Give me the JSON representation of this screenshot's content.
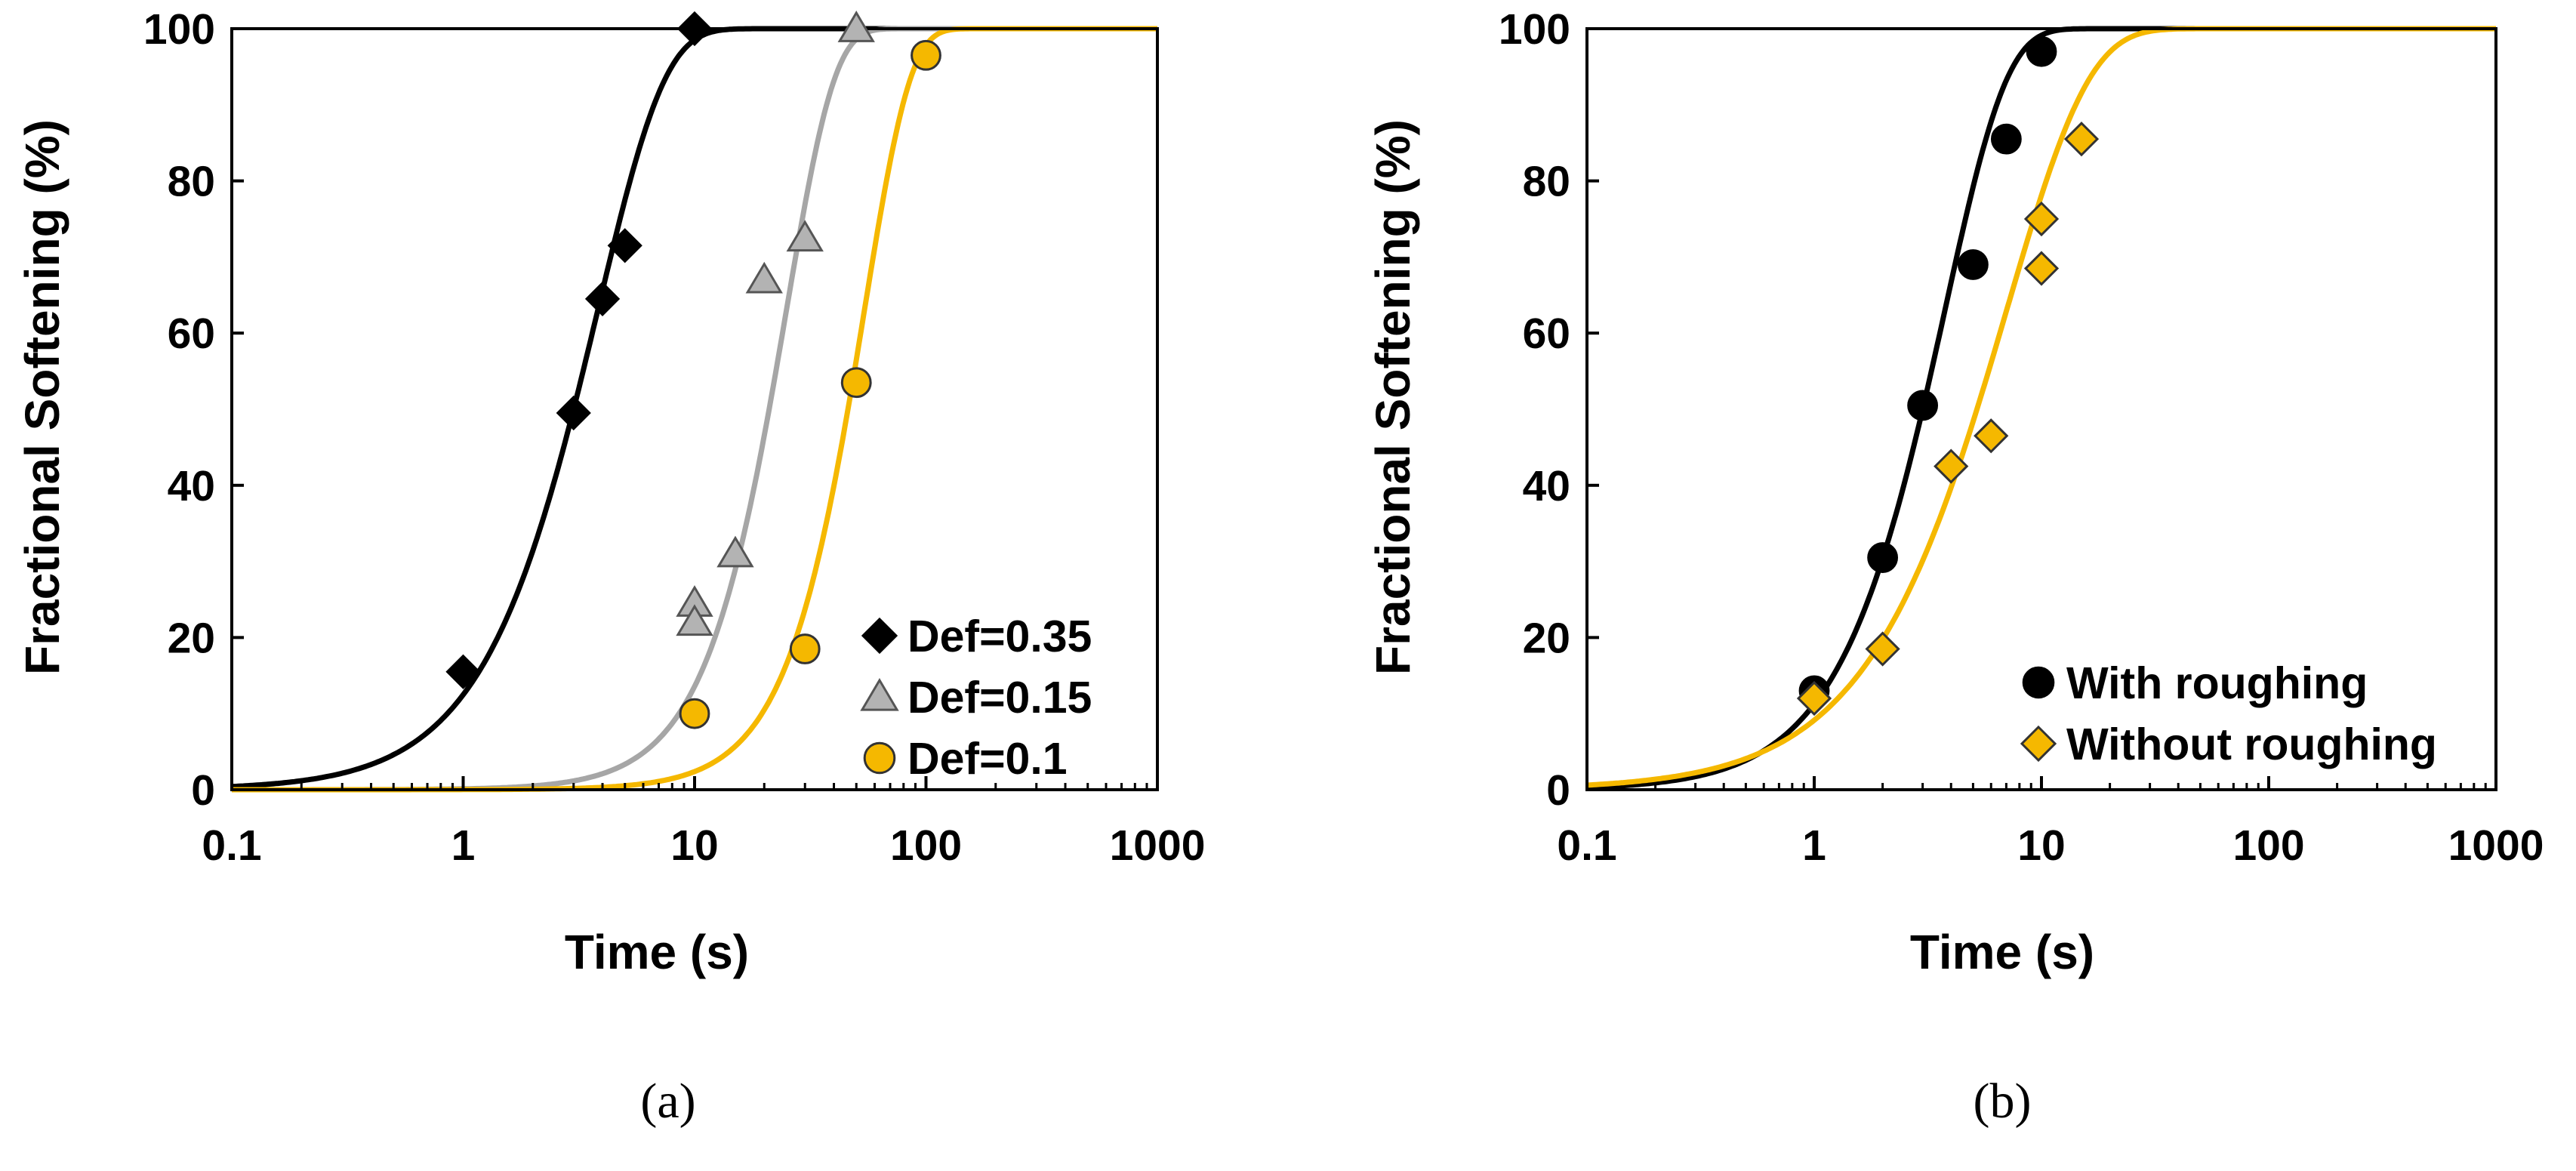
{
  "chart_data": [
    {
      "type": "scatter",
      "panel_label": "(a)",
      "title": "",
      "xlabel": "Time (s)",
      "ylabel": "Fractional Softening (%)",
      "xscale": "log",
      "xlim": [
        0.1,
        1000
      ],
      "ylim": [
        0,
        100
      ],
      "xticks": [
        0.1,
        1,
        10,
        100,
        1000
      ],
      "xtick_labels": [
        "0.1",
        "1",
        "10",
        "100",
        "1000"
      ],
      "yticks": [
        0,
        20,
        40,
        60,
        80,
        100
      ],
      "ytick_labels": [
        "0",
        "20",
        "40",
        "60",
        "80",
        "100"
      ],
      "legend_position": "bottom-right",
      "series": [
        {
          "name": "Def=0.35",
          "marker": "diamond",
          "color": "#000000",
          "stroke": "#000000",
          "line_color": "#000000",
          "fit_t50": 3.0,
          "fit_n": 1.5,
          "x": [
            1,
            3,
            4,
            5,
            10
          ],
          "y": [
            15.5,
            49.5,
            64.5,
            71.5,
            100
          ]
        },
        {
          "name": "Def=0.15",
          "marker": "triangle",
          "color": "#b3b3b3",
          "stroke": "#555555",
          "line_color": "#a6a6a6",
          "fit_t50": 21,
          "fit_n": 2.1,
          "x": [
            10,
            10,
            15,
            20,
            30,
            50
          ],
          "y": [
            24.5,
            22,
            31,
            67,
            72.5,
            100
          ]
        },
        {
          "name": "Def=0.1",
          "marker": "circle",
          "color": "#f5b800",
          "stroke": "#333333",
          "line_color": "#f5b800",
          "fit_t50": 46,
          "fit_n": 2.2,
          "x": [
            10,
            30,
            50,
            100
          ],
          "y": [
            10,
            18.5,
            53.5,
            96.5
          ]
        }
      ]
    },
    {
      "type": "scatter",
      "panel_label": "(b)",
      "title": "",
      "xlabel": "Time (s)",
      "ylabel": "Fractional Softening (%)",
      "xscale": "log",
      "xlim": [
        0.1,
        1000
      ],
      "ylim": [
        0,
        100
      ],
      "xticks": [
        0.1,
        1,
        10,
        100,
        1000
      ],
      "xtick_labels": [
        "0.1",
        "1",
        "10",
        "100",
        "1000"
      ],
      "yticks": [
        0,
        20,
        40,
        60,
        80,
        100
      ],
      "ytick_labels": [
        "0",
        "20",
        "40",
        "60",
        "80",
        "100"
      ],
      "legend_position": "bottom-right",
      "series": [
        {
          "name": "With roughing",
          "marker": "circle",
          "color": "#000000",
          "stroke": "#000000",
          "line_color": "#000000",
          "fit_t50": 3.0,
          "fit_n": 1.6,
          "x": [
            1,
            2,
            3,
            5,
            7,
            10
          ],
          "y": [
            13,
            30.5,
            50.5,
            69,
            85.5,
            97
          ]
        },
        {
          "name": "Without roughing",
          "marker": "diamond",
          "color": "#f5b800",
          "stroke": "#333333",
          "line_color": "#f5b800",
          "fit_t50": 5.2,
          "fit_n": 1.2,
          "x": [
            1,
            2,
            4,
            6,
            10,
            10,
            15
          ],
          "y": [
            12,
            18.5,
            42.5,
            46.5,
            68.5,
            75,
            85.5
          ]
        }
      ]
    }
  ]
}
